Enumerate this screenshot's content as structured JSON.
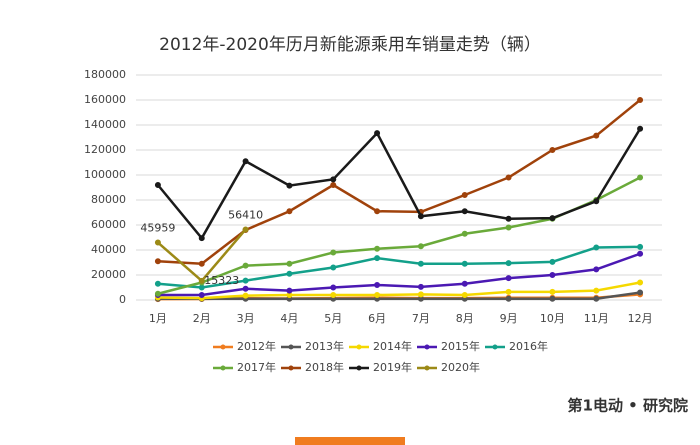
{
  "chart_data": {
    "type": "line",
    "title": "2012年-2020年历月新能源乘用车销量走势（辆）",
    "categories": [
      "1月",
      "2月",
      "3月",
      "4月",
      "5月",
      "6月",
      "7月",
      "8月",
      "9月",
      "10月",
      "11月",
      "12月"
    ],
    "ylim": [
      0,
      180000
    ],
    "yticks": [
      0,
      20000,
      40000,
      60000,
      80000,
      100000,
      120000,
      140000,
      160000,
      180000
    ],
    "grid": true,
    "series": [
      {
        "name": "2012年",
        "color": "#f07c1f",
        "values": [
          700,
          800,
          1500,
          1200,
          1500,
          1800,
          1500,
          1500,
          1800,
          1800,
          1800,
          4500
        ]
      },
      {
        "name": "2013年",
        "color": "#555555",
        "values": [
          1000,
          1000,
          1000,
          1000,
          1000,
          1000,
          1000,
          1000,
          1000,
          1000,
          1000,
          6000
        ]
      },
      {
        "name": "2014年",
        "color": "#f5d800",
        "values": [
          2000,
          1500,
          3500,
          4000,
          4000,
          4000,
          4500,
          4000,
          6500,
          6500,
          7500,
          14000
        ]
      },
      {
        "name": "2015年",
        "color": "#4b19b3",
        "values": [
          4000,
          4000,
          9000,
          7500,
          10000,
          12000,
          10500,
          13000,
          17500,
          20000,
          24500,
          37000
        ]
      },
      {
        "name": "2016年",
        "color": "#13a08a",
        "values": [
          13000,
          10000,
          15500,
          21000,
          26000,
          33500,
          29000,
          29000,
          29500,
          30500,
          42000,
          42500
        ]
      },
      {
        "name": "2017年",
        "color": "#6aaa3a",
        "values": [
          5000,
          14000,
          27500,
          29000,
          38000,
          41000,
          43000,
          53000,
          58000,
          65000,
          80000,
          98000
        ]
      },
      {
        "name": "2018年",
        "color": "#a0420b",
        "values": [
          31000,
          29000,
          56000,
          71000,
          92000,
          71000,
          70500,
          84000,
          98000,
          120000,
          131500,
          160000
        ]
      },
      {
        "name": "2019年",
        "color": "#1a1a1a",
        "values": [
          92000,
          49500,
          111000,
          91500,
          96500,
          133500,
          67000,
          71000,
          65000,
          65500,
          79000,
          137000
        ]
      },
      {
        "name": "2020年",
        "color": "#9c8a17",
        "values": [
          45959,
          15323,
          56410,
          null,
          null,
          null,
          null,
          null,
          null,
          null,
          null,
          null
        ],
        "data_labels": true
      }
    ],
    "footer": "第1电动 • 研究院"
  }
}
